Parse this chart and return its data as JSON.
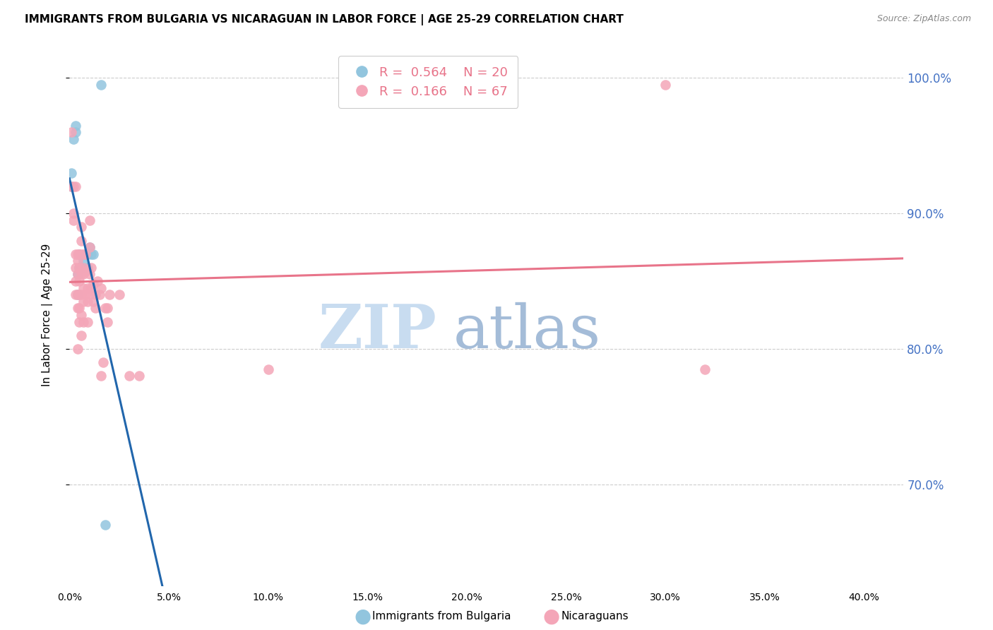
{
  "title": "IMMIGRANTS FROM BULGARIA VS NICARAGUAN IN LABOR FORCE | AGE 25-29 CORRELATION CHART",
  "source": "Source: ZipAtlas.com",
  "ylabel": "In Labor Force | Age 25-29",
  "legend_blue_R": "0.564",
  "legend_blue_N": "20",
  "legend_pink_R": "0.166",
  "legend_pink_N": "67",
  "blue_scatter_color": "#92C5DE",
  "pink_scatter_color": "#F4A6B8",
  "blue_line_color": "#2166AC",
  "pink_line_color": "#E8748A",
  "right_axis_color": "#4472C4",
  "watermark_zip": "ZIP",
  "watermark_atlas": "atlas",
  "watermark_color_zip": "#C8D8F0",
  "watermark_color_atlas": "#A0B8D8",
  "background_color": "#FFFFFF",
  "blue_x": [
    0.001,
    0.001,
    0.002,
    0.003,
    0.003,
    0.004,
    0.004,
    0.005,
    0.005,
    0.005,
    0.006,
    0.007,
    0.008,
    0.009,
    0.009,
    0.01,
    0.011,
    0.012,
    0.016,
    0.018
  ],
  "blue_y": [
    0.92,
    0.93,
    0.955,
    0.96,
    0.965,
    0.84,
    0.855,
    0.86,
    0.87,
    0.86,
    0.86,
    0.865,
    0.87,
    0.87,
    0.86,
    0.875,
    0.87,
    0.87,
    0.995,
    0.67
  ],
  "pink_x": [
    0.001,
    0.001,
    0.002,
    0.002,
    0.002,
    0.003,
    0.003,
    0.003,
    0.003,
    0.003,
    0.004,
    0.004,
    0.004,
    0.004,
    0.004,
    0.005,
    0.005,
    0.005,
    0.005,
    0.005,
    0.005,
    0.006,
    0.006,
    0.006,
    0.006,
    0.006,
    0.006,
    0.006,
    0.007,
    0.007,
    0.007,
    0.007,
    0.007,
    0.007,
    0.008,
    0.008,
    0.008,
    0.009,
    0.009,
    0.009,
    0.009,
    0.01,
    0.01,
    0.01,
    0.01,
    0.011,
    0.011,
    0.012,
    0.012,
    0.013,
    0.013,
    0.014,
    0.015,
    0.016,
    0.016,
    0.017,
    0.018,
    0.019,
    0.019,
    0.02,
    0.025,
    0.03,
    0.035,
    0.1,
    0.3,
    0.32,
    0.004
  ],
  "pink_y": [
    0.96,
    0.92,
    0.92,
    0.9,
    0.895,
    0.92,
    0.87,
    0.86,
    0.85,
    0.84,
    0.87,
    0.865,
    0.855,
    0.84,
    0.83,
    0.87,
    0.86,
    0.85,
    0.84,
    0.83,
    0.82,
    0.89,
    0.88,
    0.87,
    0.855,
    0.84,
    0.825,
    0.81,
    0.87,
    0.86,
    0.855,
    0.845,
    0.835,
    0.82,
    0.87,
    0.858,
    0.84,
    0.858,
    0.845,
    0.835,
    0.82,
    0.895,
    0.875,
    0.855,
    0.84,
    0.86,
    0.845,
    0.848,
    0.835,
    0.84,
    0.83,
    0.85,
    0.84,
    0.845,
    0.78,
    0.79,
    0.83,
    0.83,
    0.82,
    0.84,
    0.84,
    0.78,
    0.78,
    0.785,
    0.995,
    0.785,
    0.8
  ],
  "xlim": [
    0.0,
    0.42
  ],
  "ylim": [
    0.625,
    1.025
  ],
  "x_ticks": [
    0.0,
    0.05,
    0.1,
    0.15,
    0.2,
    0.25,
    0.3,
    0.35,
    0.4
  ],
  "y_ticks": [
    0.7,
    0.8,
    0.9,
    1.0
  ]
}
